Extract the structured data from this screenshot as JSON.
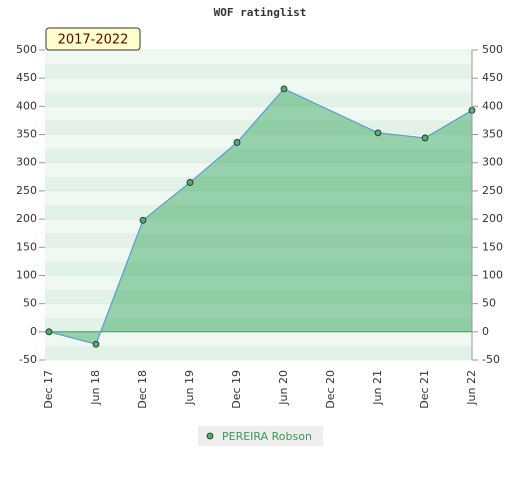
{
  "chart_data": {
    "type": "area",
    "title": "WOF ratinglist",
    "subtitle": "2017-2022",
    "categories": [
      "Dec 17",
      "Jun 18",
      "Dec 18",
      "Jun 19",
      "Dec 19",
      "Jun 20",
      "Dec 20",
      "Jun 21",
      "Dec 21",
      "Jun 22"
    ],
    "series": [
      {
        "name": "PEREIRA Robson",
        "color": "#5b9bd5",
        "x": [
          "Dec 17",
          "Jun 18",
          "Dec 18",
          "Jun 19",
          "Dec 19",
          "Jun 20",
          "Jun 21",
          "Dec 21",
          "Jun 22"
        ],
        "values": [
          0,
          -22,
          198,
          265,
          336,
          431,
          353,
          344,
          393
        ]
      }
    ],
    "ylim": [
      -50,
      500
    ],
    "yticks": [
      -50,
      0,
      50,
      100,
      150,
      200,
      250,
      300,
      350,
      400,
      450,
      500
    ],
    "y2lim": [
      -50,
      500
    ],
    "y2ticks": [
      -50,
      0,
      50,
      100,
      150,
      200,
      250,
      300,
      350,
      400,
      450,
      500
    ],
    "grid": true
  }
}
